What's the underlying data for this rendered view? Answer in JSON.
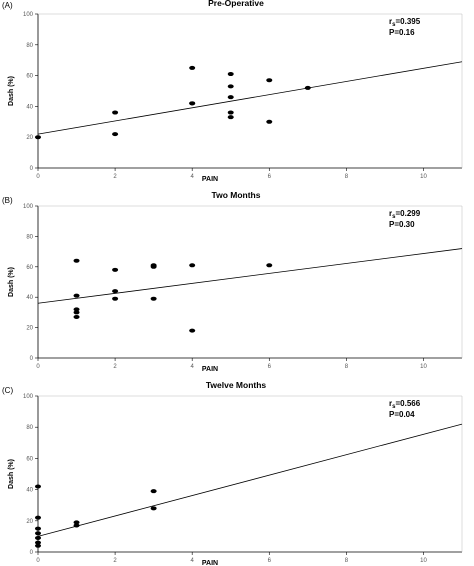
{
  "chart_data": [
    {
      "type": "scatter",
      "panel_label": "(A)",
      "title": "Pre-Operative",
      "xlabel": "PAIN",
      "ylabel": "Dash (%)",
      "xlim": [
        0,
        11
      ],
      "ylim": [
        0,
        100
      ],
      "x_ticks": [
        0,
        2,
        4,
        6,
        8,
        10
      ],
      "y_ticks": [
        0,
        20,
        40,
        60,
        80,
        100
      ],
      "points": [
        {
          "x": 0,
          "y": 20
        },
        {
          "x": 2,
          "y": 36
        },
        {
          "x": 2,
          "y": 22
        },
        {
          "x": 4,
          "y": 65
        },
        {
          "x": 4,
          "y": 42
        },
        {
          "x": 4,
          "y": 42
        },
        {
          "x": 5,
          "y": 61
        },
        {
          "x": 5,
          "y": 53
        },
        {
          "x": 5,
          "y": 46
        },
        {
          "x": 5,
          "y": 36
        },
        {
          "x": 5,
          "y": 33
        },
        {
          "x": 6,
          "y": 57
        },
        {
          "x": 6,
          "y": 30
        },
        {
          "x": 7,
          "y": 52
        }
      ],
      "fit_line": {
        "y_at_xmin": 22,
        "y_at_xmax": 69
      },
      "stat_r_prefix": "r",
      "stat_r_sub": "s",
      "stat_r_value": "=0.395",
      "stat_p": "P=0.16"
    },
    {
      "type": "scatter",
      "panel_label": "(B)",
      "title": "Two Months",
      "xlabel": "PAIN",
      "ylabel": "Dash (%)",
      "xlim": [
        0,
        11
      ],
      "ylim": [
        0,
        100
      ],
      "x_ticks": [
        0,
        2,
        4,
        6,
        8,
        10
      ],
      "y_ticks": [
        0,
        20,
        40,
        60,
        80,
        100
      ],
      "points": [
        {
          "x": 1,
          "y": 64
        },
        {
          "x": 1,
          "y": 41
        },
        {
          "x": 1,
          "y": 32
        },
        {
          "x": 1,
          "y": 30
        },
        {
          "x": 1,
          "y": 27
        },
        {
          "x": 2,
          "y": 58
        },
        {
          "x": 2,
          "y": 44
        },
        {
          "x": 2,
          "y": 39
        },
        {
          "x": 3,
          "y": 61
        },
        {
          "x": 3,
          "y": 60
        },
        {
          "x": 3,
          "y": 39
        },
        {
          "x": 4,
          "y": 61
        },
        {
          "x": 4,
          "y": 18
        },
        {
          "x": 6,
          "y": 61
        }
      ],
      "fit_line": {
        "y_at_xmin": 36,
        "y_at_xmax": 72
      },
      "stat_r_prefix": "r",
      "stat_r_sub": "s",
      "stat_r_value": "=0.299",
      "stat_p": "P=0.30"
    },
    {
      "type": "scatter",
      "panel_label": "(C)",
      "title": "Twelve Months",
      "xlabel": "PAIN",
      "ylabel": "Dash (%)",
      "xlim": [
        0,
        11
      ],
      "ylim": [
        0,
        100
      ],
      "x_ticks": [
        0,
        2,
        4,
        6,
        8,
        10
      ],
      "y_ticks": [
        0,
        20,
        40,
        60,
        80,
        100
      ],
      "points": [
        {
          "x": 0,
          "y": 42
        },
        {
          "x": 0,
          "y": 22
        },
        {
          "x": 0,
          "y": 15
        },
        {
          "x": 0,
          "y": 12
        },
        {
          "x": 0,
          "y": 9
        },
        {
          "x": 0,
          "y": 6
        },
        {
          "x": 0,
          "y": 4
        },
        {
          "x": 1,
          "y": 19
        },
        {
          "x": 1,
          "y": 17
        },
        {
          "x": 3,
          "y": 39
        },
        {
          "x": 3,
          "y": 28
        }
      ],
      "fit_line": {
        "y_at_xmin": 10,
        "y_at_xmax": 82
      },
      "stat_r_prefix": "r",
      "stat_r_sub": "s",
      "stat_r_value": "=0.566",
      "stat_p": "P=0.04"
    }
  ]
}
